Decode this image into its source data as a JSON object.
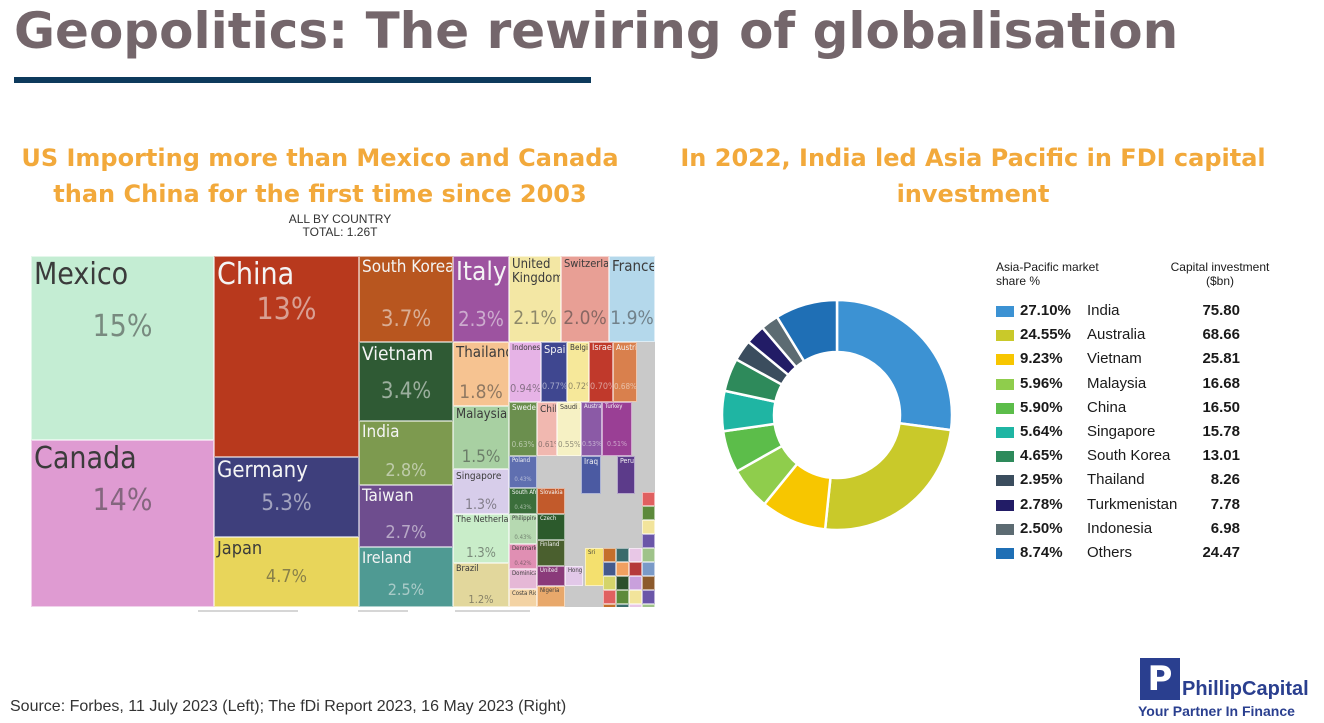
{
  "slide": {
    "title": "Geopolitics: The rewiring of globalisation",
    "source": "Source: Forbes, 11 July 2023 (Left); The fDi Report 2023, 16 May 2023 (Right)"
  },
  "left_chart": {
    "heading_line1": "US Importing more than Mexico and Canada",
    "heading_line2": "than China for the first time since 2003",
    "caption_sub": "ALL BY COUNTRY",
    "caption_total": "TOTAL: 1.26T"
  },
  "right_chart": {
    "heading_line1": "In 2022, India led Asia Pacific in FDI capital",
    "heading_line2": "investment",
    "legend_header_share_line1": "Asia-Pacific market",
    "legend_header_share_line2": "share %",
    "legend_header_value_line1": "Capital investment",
    "legend_header_value_line2": "($bn)"
  },
  "logo": {
    "letter": "P",
    "name": "PhillipCapital",
    "tagline": "Your Partner In Finance"
  },
  "chart_data": [
    {
      "type": "treemap",
      "title": "ALL BY COUNTRY",
      "subtitle": "TOTAL: 1.26T",
      "items": [
        {
          "name": "Mexico",
          "value": "15%",
          "color": "#c4edd3"
        },
        {
          "name": "Canada",
          "value": "14%",
          "color": "#df9bd2"
        },
        {
          "name": "China",
          "value": "13%",
          "color": "#b8391d"
        },
        {
          "name": "Germany",
          "value": "5.3%",
          "color": "#3e3f7c"
        },
        {
          "name": "Japan",
          "value": "4.7%",
          "color": "#e8d55a"
        },
        {
          "name": "South Korea",
          "value": "3.7%",
          "color": "#b8561f"
        },
        {
          "name": "Vietnam",
          "value": "3.4%",
          "color": "#2f5a34"
        },
        {
          "name": "India",
          "value": "2.8%",
          "color": "#7d9a4f"
        },
        {
          "name": "Taiwan",
          "value": "2.7%",
          "color": "#6e4d8e"
        },
        {
          "name": "Ireland",
          "value": "2.5%",
          "color": "#4f9a93"
        },
        {
          "name": "Italy",
          "value": "2.3%",
          "color": "#9d53a0"
        },
        {
          "name": "United Kingdom",
          "value": "2.1%",
          "color": "#f3e7a4"
        },
        {
          "name": "Switzerland",
          "value": "2.0%",
          "color": "#e89f95"
        },
        {
          "name": "France",
          "value": "1.9%",
          "color": "#b4d8eb"
        },
        {
          "name": "Thailand",
          "value": "1.8%",
          "color": "#f6c391"
        },
        {
          "name": "Malaysia",
          "value": "1.5%",
          "color": "#a8d0a2"
        },
        {
          "name": "Singapore",
          "value": "1.3%",
          "color": "#d7cdea"
        },
        {
          "name": "The Netherlands",
          "value": "1.3%",
          "color": "#c9edc9"
        },
        {
          "name": "Brazil",
          "value": "1.2%",
          "color": "#e2d79c"
        },
        {
          "name": "Indonesia",
          "value": "0.94%",
          "color": "#e6b3e6"
        },
        {
          "name": "Spain",
          "value": "0.77%",
          "color": "#3f4790"
        },
        {
          "name": "Belgium",
          "value": "0.72%",
          "color": "#f6e89a"
        },
        {
          "name": "Israel",
          "value": "0.70%",
          "color": "#c0392b"
        },
        {
          "name": "Austria",
          "value": "0.68%",
          "color": "#d9804d"
        },
        {
          "name": "Sweden",
          "value": "0.63%",
          "color": "#6b8f4e"
        },
        {
          "name": "Chile",
          "value": "0.61%",
          "color": "#f1b8b0"
        },
        {
          "name": "Saudi Arabia",
          "value": "0.55%",
          "color": "#f6f1c4"
        },
        {
          "name": "Australia",
          "value": "0.53%",
          "color": "#8b5aa6"
        },
        {
          "name": "Turkey",
          "value": "0.51%",
          "color": "#9a3f95"
        },
        {
          "name": "Poland",
          "value": "0.43%",
          "color": "#5f6fb0"
        },
        {
          "name": "Iraq",
          "value": "",
          "color": "#4b5aa2"
        },
        {
          "name": "Peru",
          "value": "",
          "color": "#5c3b8a"
        },
        {
          "name": "South Africa",
          "value": "0.43%",
          "color": "#3b6e3b"
        },
        {
          "name": "Slovakia",
          "value": "",
          "color": "#c25a2b"
        },
        {
          "name": "Czech",
          "value": "",
          "color": "#2c5a2c"
        },
        {
          "name": "Philippines",
          "value": "0.43%",
          "color": "#b6d9b1"
        },
        {
          "name": "Finland",
          "value": "",
          "color": "#4a5f2e"
        },
        {
          "name": "Denmark",
          "value": "0.42%",
          "color": "#e08fb3"
        },
        {
          "name": "United",
          "value": "",
          "color": "#8a3a7a"
        },
        {
          "name": "Dominican Republic",
          "value": "0.42%",
          "color": "#e5b8d6"
        },
        {
          "name": "Costa Rica",
          "value": "",
          "color": "#f3d3a4"
        },
        {
          "name": "Nigeria",
          "value": "",
          "color": "#e8a86b"
        },
        {
          "name": "Hong",
          "value": "",
          "color": "#e2c8e8"
        },
        {
          "name": "Sri",
          "value": "",
          "color": "#f4e06e"
        }
      ]
    },
    {
      "type": "pie",
      "style": "donut",
      "slices": [
        {
          "label": "India",
          "share_pct": 27.1,
          "share_text": "27.10%",
          "capital_bn": 75.8,
          "capital_text": "75.80",
          "color": "#3c92d3"
        },
        {
          "label": "Australia",
          "share_pct": 24.55,
          "share_text": "24.55%",
          "capital_bn": 68.66,
          "capital_text": "68.66",
          "color": "#c9c92a"
        },
        {
          "label": "Vietnam",
          "share_pct": 9.23,
          "share_text": "9.23%",
          "capital_bn": 25.81,
          "capital_text": "25.81",
          "color": "#f7c600"
        },
        {
          "label": "Malaysia",
          "share_pct": 5.96,
          "share_text": "5.96%",
          "capital_bn": 16.68,
          "capital_text": "16.68",
          "color": "#8fcd4c"
        },
        {
          "label": "China",
          "share_pct": 5.9,
          "share_text": "5.90%",
          "capital_bn": 16.5,
          "capital_text": "16.50",
          "color": "#5cbd4a"
        },
        {
          "label": "Singapore",
          "share_pct": 5.64,
          "share_text": "5.64%",
          "capital_bn": 15.78,
          "capital_text": "15.78",
          "color": "#1fb5a3"
        },
        {
          "label": "South Korea",
          "share_pct": 4.65,
          "share_text": "4.65%",
          "capital_bn": 13.01,
          "capital_text": "13.01",
          "color": "#2e8a5b"
        },
        {
          "label": "Thailand",
          "share_pct": 2.95,
          "share_text": "2.95%",
          "capital_bn": 8.26,
          "capital_text": "8.26",
          "color": "#3b4d5e"
        },
        {
          "label": "Turkmenistan",
          "share_pct": 2.78,
          "share_text": "2.78%",
          "capital_bn": 7.78,
          "capital_text": "7.78",
          "color": "#221c66"
        },
        {
          "label": "Indonesia",
          "share_pct": 2.5,
          "share_text": "2.50%",
          "capital_bn": 6.98,
          "capital_text": "6.98",
          "color": "#5c6b72"
        },
        {
          "label": "Others",
          "share_pct": 8.74,
          "share_text": "8.74%",
          "capital_bn": 24.47,
          "capital_text": "24.47",
          "color": "#1f6fb5"
        }
      ]
    }
  ]
}
